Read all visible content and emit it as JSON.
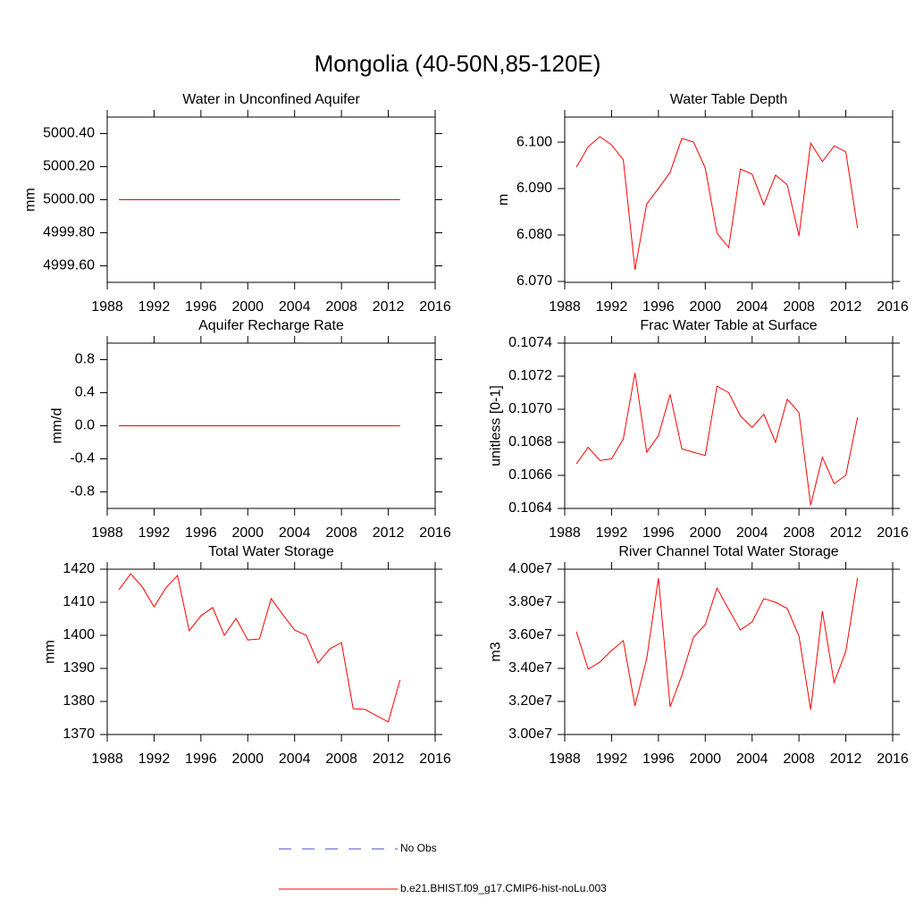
{
  "title": "Mongolia (40-50N,85-120E)",
  "legend": [
    {
      "name": "No Obs",
      "color": "#4b4bc8",
      "dashed": true
    },
    {
      "name": "b.e21.BHIST.f09_g17.CMIP6-hist-noLu.003",
      "color": "#ff0000"
    }
  ],
  "chart_data": [
    {
      "type": "line",
      "title": "Water in Unconfined Aquifer",
      "y_label": "mm",
      "x": [
        1989,
        1990,
        1991,
        1992,
        1993,
        1994,
        1995,
        1996,
        1997,
        1998,
        1999,
        2000,
        2001,
        2002,
        2003,
        2004,
        2005,
        2006,
        2007,
        2008,
        2009,
        2010,
        2011,
        2012,
        2013
      ],
      "xlim": [
        1988,
        2016
      ],
      "xticks": [
        1988,
        1992,
        1996,
        2000,
        2004,
        2008,
        2012,
        2016
      ],
      "ylim": [
        4999.5,
        5000.5
      ],
      "yticks": [
        {
          "value": 4999.6,
          "label": "4999.60"
        },
        {
          "value": 4999.8,
          "label": "4999.80"
        },
        {
          "value": 5000,
          "label": "5000.00"
        },
        {
          "value": 5000.2,
          "label": "5000.20"
        },
        {
          "value": 5000.4,
          "label": "5000.40"
        }
      ],
      "series": [
        {
          "color": "#ff0000",
          "values": [
            5000,
            5000,
            5000,
            5000,
            5000,
            5000,
            5000,
            5000,
            5000,
            5000,
            5000,
            5000,
            5000,
            5000,
            5000,
            5000,
            5000,
            5000,
            5000,
            5000,
            5000,
            5000,
            5000,
            5000,
            5000
          ]
        }
      ]
    },
    {
      "type": "line",
      "title": "Water Table Depth",
      "y_label": "m",
      "x": [
        1989,
        1990,
        1991,
        1992,
        1993,
        1994,
        1995,
        1996,
        1997,
        1998,
        1999,
        2000,
        2001,
        2002,
        2003,
        2004,
        2005,
        2006,
        2007,
        2008,
        2009,
        2010,
        2011,
        2012,
        2013
      ],
      "xlim": [
        1988,
        2016
      ],
      "xticks": [
        1988,
        1992,
        1996,
        2000,
        2004,
        2008,
        2012,
        2016
      ],
      "ylim": [
        6.0698,
        6.1054
      ],
      "yticks": [
        {
          "value": 6.07,
          "label": "6.070"
        },
        {
          "value": 6.08,
          "label": "6.080"
        },
        {
          "value": 6.09,
          "label": "6.090"
        },
        {
          "value": 6.1,
          "label": "6.100"
        }
      ],
      "series": [
        {
          "color": "#ff0000",
          "values": [
            6.0946,
            6.099,
            6.1012,
            6.0994,
            6.0962,
            6.0725,
            6.0867,
            6.09,
            6.0935,
            6.1008,
            6.1,
            6.0944,
            6.0804,
            6.0773,
            6.0942,
            6.0931,
            6.0865,
            6.0929,
            6.0908,
            6.0798,
            6.0998,
            6.0958,
            6.0992,
            6.0979,
            6.0815
          ]
        }
      ]
    },
    {
      "type": "line",
      "title": "Aquifer Recharge Rate",
      "y_label": "mm/d",
      "x": [
        1989,
        1990,
        1991,
        1992,
        1993,
        1994,
        1995,
        1996,
        1997,
        1998,
        1999,
        2000,
        2001,
        2002,
        2003,
        2004,
        2005,
        2006,
        2007,
        2008,
        2009,
        2010,
        2011,
        2012,
        2013
      ],
      "xlim": [
        1988,
        2016
      ],
      "xticks": [
        1988,
        1992,
        1996,
        2000,
        2004,
        2008,
        2012,
        2016
      ],
      "ylim": [
        -1,
        1
      ],
      "yticks": [
        -0.8,
        -0.4,
        {
          "value": 0,
          "label": "0.0"
        },
        0.4,
        0.8
      ],
      "series": [
        {
          "color": "#ff0000",
          "values": [
            0,
            0,
            0,
            0,
            0,
            0,
            0,
            0,
            0,
            0,
            0,
            0,
            0,
            0,
            0,
            0,
            0,
            0,
            0,
            0,
            0,
            0,
            0,
            0,
            0
          ]
        }
      ]
    },
    {
      "type": "line",
      "title": "Frac Water Table at Surface",
      "y_label": "unitless [0-1]",
      "x": [
        1989,
        1990,
        1991,
        1992,
        1993,
        1994,
        1995,
        1996,
        1997,
        1998,
        1999,
        2000,
        2001,
        2002,
        2003,
        2004,
        2005,
        2006,
        2007,
        2008,
        2009,
        2010,
        2011,
        2012,
        2013
      ],
      "xlim": [
        1988,
        2016
      ],
      "xticks": [
        1988,
        1992,
        1996,
        2000,
        2004,
        2008,
        2012,
        2016
      ],
      "ylim": [
        0.1064,
        0.1074
      ],
      "yticks": [
        0.1064,
        0.1066,
        0.1068,
        {
          "value": 0.107,
          "label": "0.1070"
        },
        0.1072,
        0.1074
      ],
      "series": [
        {
          "color": "#ff0000",
          "values": [
            0.10667,
            0.10677,
            0.10669,
            0.1067,
            0.10682,
            0.10722,
            0.10674,
            0.10684,
            0.10709,
            0.10676,
            0.10674,
            0.10672,
            0.10714,
            0.1071,
            0.10696,
            0.10689,
            0.10697,
            0.1068,
            0.10706,
            0.10698,
            0.10642,
            0.10671,
            0.10655,
            0.1066,
            0.10695
          ]
        }
      ]
    },
    {
      "type": "line",
      "title": "Total Water Storage",
      "y_label": "mm",
      "x": [
        1989,
        1990,
        1991,
        1992,
        1993,
        1994,
        1995,
        1996,
        1997,
        1998,
        1999,
        2000,
        2001,
        2002,
        2003,
        2004,
        2005,
        2006,
        2007,
        2008,
        2009,
        2010,
        2011,
        2012,
        2013
      ],
      "xlim": [
        1988,
        2016
      ],
      "xticks": [
        1988,
        1992,
        1996,
        2000,
        2004,
        2008,
        2012,
        2016
      ],
      "ylim": [
        1370,
        1420
      ],
      "yticks": [
        1370,
        1380,
        1390,
        1400,
        1410,
        1420
      ],
      "series": [
        {
          "color": "#ff0000",
          "values": [
            1413.8,
            1418.6,
            1414.6,
            1408.6,
            1414.3,
            1418.1,
            1401.4,
            1405.9,
            1408.4,
            1400.0,
            1405.1,
            1398.6,
            1398.9,
            1411.1,
            1406.2,
            1401.6,
            1400.0,
            1391.6,
            1395.9,
            1397.8,
            1377.8,
            1377.6,
            1375.7,
            1373.8,
            1386.5
          ]
        }
      ]
    },
    {
      "type": "line",
      "title": "River Channel Total Water Storage",
      "y_label": "m3",
      "x": [
        1989,
        1990,
        1991,
        1992,
        1993,
        1994,
        1995,
        1996,
        1997,
        1998,
        1999,
        2000,
        2001,
        2002,
        2003,
        2004,
        2005,
        2006,
        2007,
        2008,
        2009,
        2010,
        2011,
        2012,
        2013
      ],
      "xlim": [
        1988,
        2016
      ],
      "xticks": [
        1988,
        1992,
        1996,
        2000,
        2004,
        2008,
        2012,
        2016
      ],
      "ylim": [
        30000000,
        40000000
      ],
      "yticks": [
        {
          "value": 30000000,
          "label": "3.00e7"
        },
        {
          "value": 32000000,
          "label": "3.20e7"
        },
        {
          "value": 34000000,
          "label": "3.40e7"
        },
        {
          "value": 36000000,
          "label": "3.60e7"
        },
        {
          "value": 38000000,
          "label": "3.80e7"
        },
        {
          "value": 40000000,
          "label": "4.00e7"
        }
      ],
      "series": [
        {
          "color": "#ff0000",
          "values": [
            36220000,
            33950000,
            34380000,
            35080000,
            35680000,
            31730000,
            34590000,
            39460000,
            31680000,
            33570000,
            35890000,
            36650000,
            38860000,
            37570000,
            36320000,
            36810000,
            38220000,
            38000000,
            37620000,
            35950000,
            31510000,
            37460000,
            33140000,
            35030000,
            39460000
          ]
        }
      ]
    }
  ]
}
